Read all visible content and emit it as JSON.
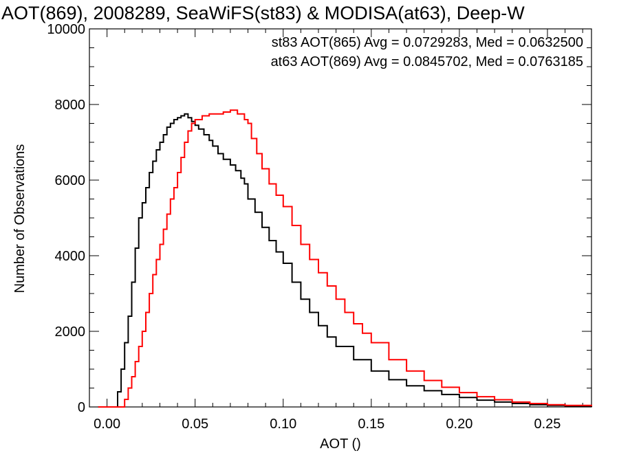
{
  "chart_data": {
    "type": "line",
    "title": "AOT(869), 2008289, SeaWiFS(st83) & MODISA(at63), Deep-W",
    "xlabel": "AOT ()",
    "ylabel": "Number of Observations",
    "xlim": [
      -0.01,
      0.275
    ],
    "ylim": [
      0,
      10000
    ],
    "x_ticks": [
      0.0,
      0.05,
      0.1,
      0.15,
      0.2,
      0.25
    ],
    "x_tick_labels": [
      "0.00",
      "0.05",
      "0.10",
      "0.15",
      "0.20",
      "0.25"
    ],
    "y_ticks": [
      0,
      2000,
      4000,
      6000,
      8000,
      10000
    ],
    "y_tick_labels": [
      "0",
      "2000",
      "4000",
      "6000",
      "8000",
      "10000"
    ],
    "grid": false,
    "legend_placement": "top-right",
    "series": [
      {
        "name": "st83 AOT(865) Avg = 0.0729283, Med = 0.0632500",
        "color": "#000000",
        "x": [
          -0.005,
          0.0,
          0.004,
          0.006,
          0.008,
          0.01,
          0.012,
          0.014,
          0.016,
          0.018,
          0.02,
          0.022,
          0.024,
          0.026,
          0.028,
          0.03,
          0.032,
          0.034,
          0.036,
          0.038,
          0.04,
          0.042,
          0.044,
          0.046,
          0.048,
          0.05,
          0.052,
          0.055,
          0.058,
          0.06,
          0.063,
          0.066,
          0.07,
          0.073,
          0.076,
          0.078,
          0.08,
          0.084,
          0.088,
          0.092,
          0.096,
          0.1,
          0.105,
          0.11,
          0.115,
          0.12,
          0.125,
          0.13,
          0.14,
          0.15,
          0.16,
          0.17,
          0.18,
          0.19,
          0.2,
          0.21,
          0.22,
          0.23,
          0.24,
          0.25,
          0.26,
          0.275
        ],
        "y": [
          0,
          0,
          0,
          400,
          1000,
          1700,
          2400,
          3300,
          4200,
          5000,
          5400,
          5800,
          6200,
          6500,
          6800,
          7000,
          7200,
          7400,
          7500,
          7600,
          7650,
          7700,
          7750,
          7650,
          7550,
          7450,
          7350,
          7200,
          7050,
          6900,
          6700,
          6550,
          6400,
          6250,
          6050,
          5900,
          5500,
          5150,
          4750,
          4400,
          4100,
          3800,
          3300,
          2850,
          2500,
          2150,
          1850,
          1600,
          1250,
          950,
          720,
          560,
          430,
          330,
          250,
          180,
          130,
          90,
          60,
          40,
          20,
          0
        ]
      },
      {
        "name": "at63 AOT(869) Avg = 0.0845702, Med = 0.0763185",
        "color": "#ff0000",
        "x": [
          -0.005,
          0.0,
          0.008,
          0.01,
          0.012,
          0.014,
          0.016,
          0.018,
          0.02,
          0.022,
          0.024,
          0.026,
          0.028,
          0.03,
          0.032,
          0.034,
          0.036,
          0.038,
          0.04,
          0.042,
          0.044,
          0.046,
          0.048,
          0.05,
          0.054,
          0.058,
          0.062,
          0.066,
          0.07,
          0.074,
          0.078,
          0.08,
          0.082,
          0.085,
          0.088,
          0.092,
          0.096,
          0.1,
          0.105,
          0.11,
          0.115,
          0.12,
          0.125,
          0.13,
          0.135,
          0.14,
          0.145,
          0.15,
          0.16,
          0.17,
          0.18,
          0.19,
          0.2,
          0.21,
          0.22,
          0.23,
          0.24,
          0.25,
          0.26,
          0.275
        ],
        "y": [
          0,
          0,
          0,
          200,
          500,
          800,
          1200,
          1600,
          2000,
          2500,
          3000,
          3500,
          3900,
          4300,
          4700,
          5100,
          5500,
          5800,
          6200,
          6600,
          7000,
          7300,
          7500,
          7600,
          7700,
          7750,
          7750,
          7800,
          7850,
          7750,
          7600,
          7500,
          7100,
          6700,
          6300,
          5900,
          5600,
          5300,
          4800,
          4300,
          3900,
          3550,
          3200,
          2850,
          2500,
          2200,
          1950,
          1700,
          1250,
          950,
          700,
          520,
          380,
          270,
          190,
          130,
          90,
          60,
          40,
          20
        ]
      }
    ]
  }
}
